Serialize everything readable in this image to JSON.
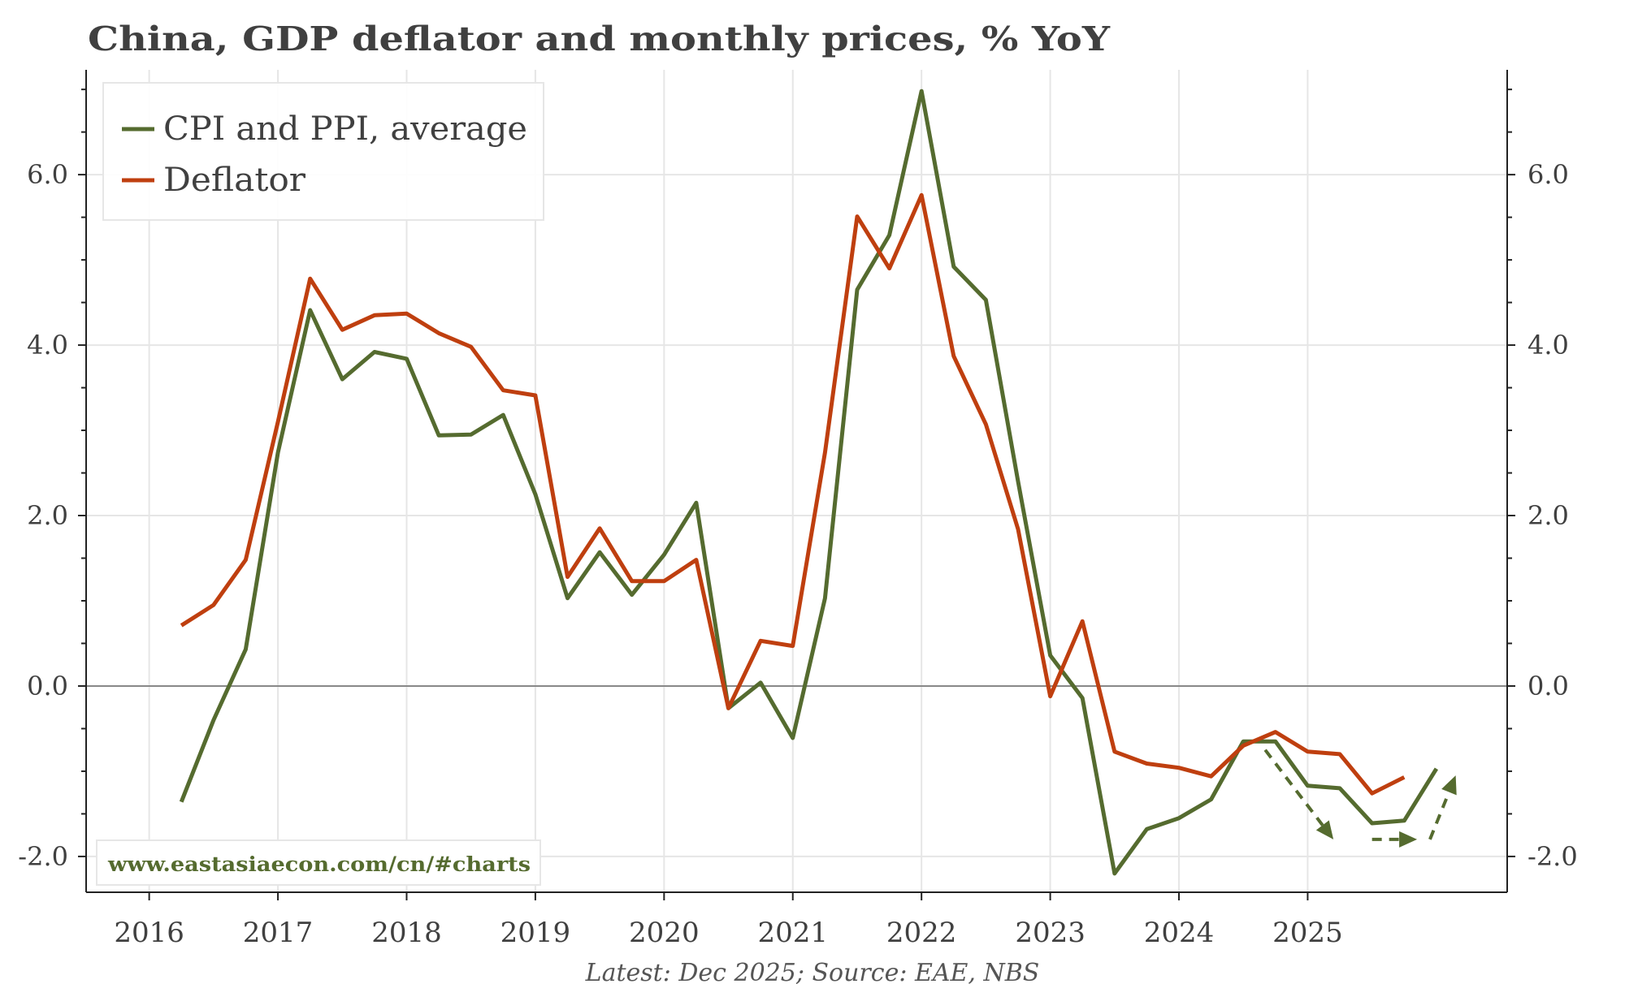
{
  "chart_data": {
    "type": "line",
    "title": "China, GDP deflator and monthly prices, % YoY",
    "footnote": "Latest: Dec 2025; Source: EAE, NBS",
    "watermark": "www.eastasiaecon.com/cn/#charts",
    "xlim": [
      2015.51,
      2026.55
    ],
    "ylim": [
      -2.42,
      7.23
    ],
    "x_ticks": [
      2016,
      2017,
      2018,
      2019,
      2020,
      2021,
      2022,
      2023,
      2024,
      2025
    ],
    "x_tick_labels": [
      "2016",
      "2017",
      "2018",
      "2019",
      "2020",
      "2021",
      "2022",
      "2023",
      "2024",
      "2025"
    ],
    "y_ticks": [
      -2,
      0,
      2,
      4,
      6
    ],
    "y_tick_labels": [
      "-2.0",
      "0.0",
      "2.0",
      "4.0",
      "6.0"
    ],
    "y_minor_step": 0.5,
    "grid": true,
    "zero_line": true,
    "legend_position": "top-left",
    "x": [
      2016.25,
      2016.5,
      2016.75,
      2017.0,
      2017.25,
      2017.5,
      2017.75,
      2018.0,
      2018.25,
      2018.5,
      2018.75,
      2019.0,
      2019.25,
      2019.5,
      2019.75,
      2020.0,
      2020.25,
      2020.5,
      2020.75,
      2021.0,
      2021.25,
      2021.5,
      2021.75,
      2022.0,
      2022.25,
      2022.5,
      2022.75,
      2023.0,
      2023.25,
      2023.5,
      2023.75,
      2024.0,
      2024.25,
      2024.5,
      2024.75,
      2025.0,
      2025.25,
      2025.5,
      2025.75,
      2026.0
    ],
    "series": [
      {
        "name": "CPI and PPI, average",
        "color": "#556b2f",
        "values": [
          -1.36,
          -0.4,
          0.43,
          2.74,
          4.41,
          3.6,
          3.92,
          3.84,
          2.94,
          2.95,
          3.18,
          2.25,
          1.03,
          1.57,
          1.07,
          1.54,
          2.15,
          -0.26,
          0.04,
          -0.61,
          1.03,
          4.65,
          5.29,
          6.98,
          4.92,
          4.53,
          2.4,
          0.36,
          -0.14,
          -2.2,
          -1.68,
          -1.55,
          -1.33,
          -0.65,
          -0.65,
          -1.17,
          -1.2,
          -1.61,
          -1.58,
          -0.97
        ]
      },
      {
        "name": "Deflator",
        "color": "#bf3f0f",
        "values": [
          0.71,
          0.95,
          1.48,
          3.1,
          4.78,
          4.18,
          4.35,
          4.37,
          4.14,
          3.98,
          3.47,
          3.41,
          1.28,
          1.85,
          1.23,
          1.23,
          1.48,
          -0.26,
          0.53,
          0.47,
          2.74,
          5.51,
          4.9,
          5.76,
          3.87,
          3.07,
          1.84,
          -0.12,
          0.76,
          -0.77,
          -0.91,
          -0.96,
          -1.06,
          -0.7,
          -0.54,
          -0.77,
          -0.8,
          -1.26,
          -1.07,
          null
        ]
      }
    ],
    "annotations": [
      {
        "type": "dashed-arrow",
        "color": "#556b2f",
        "from": [
          2024.67,
          -0.75
        ],
        "to": [
          2025.2,
          -1.8
        ]
      },
      {
        "type": "dashed-arrow",
        "color": "#556b2f",
        "from": [
          2025.5,
          -1.8
        ],
        "to": [
          2025.85,
          -1.8
        ]
      },
      {
        "type": "dashed-arrow",
        "color": "#556b2f",
        "from": [
          2025.95,
          -1.8
        ],
        "to": [
          2026.15,
          -1.05
        ]
      }
    ]
  }
}
